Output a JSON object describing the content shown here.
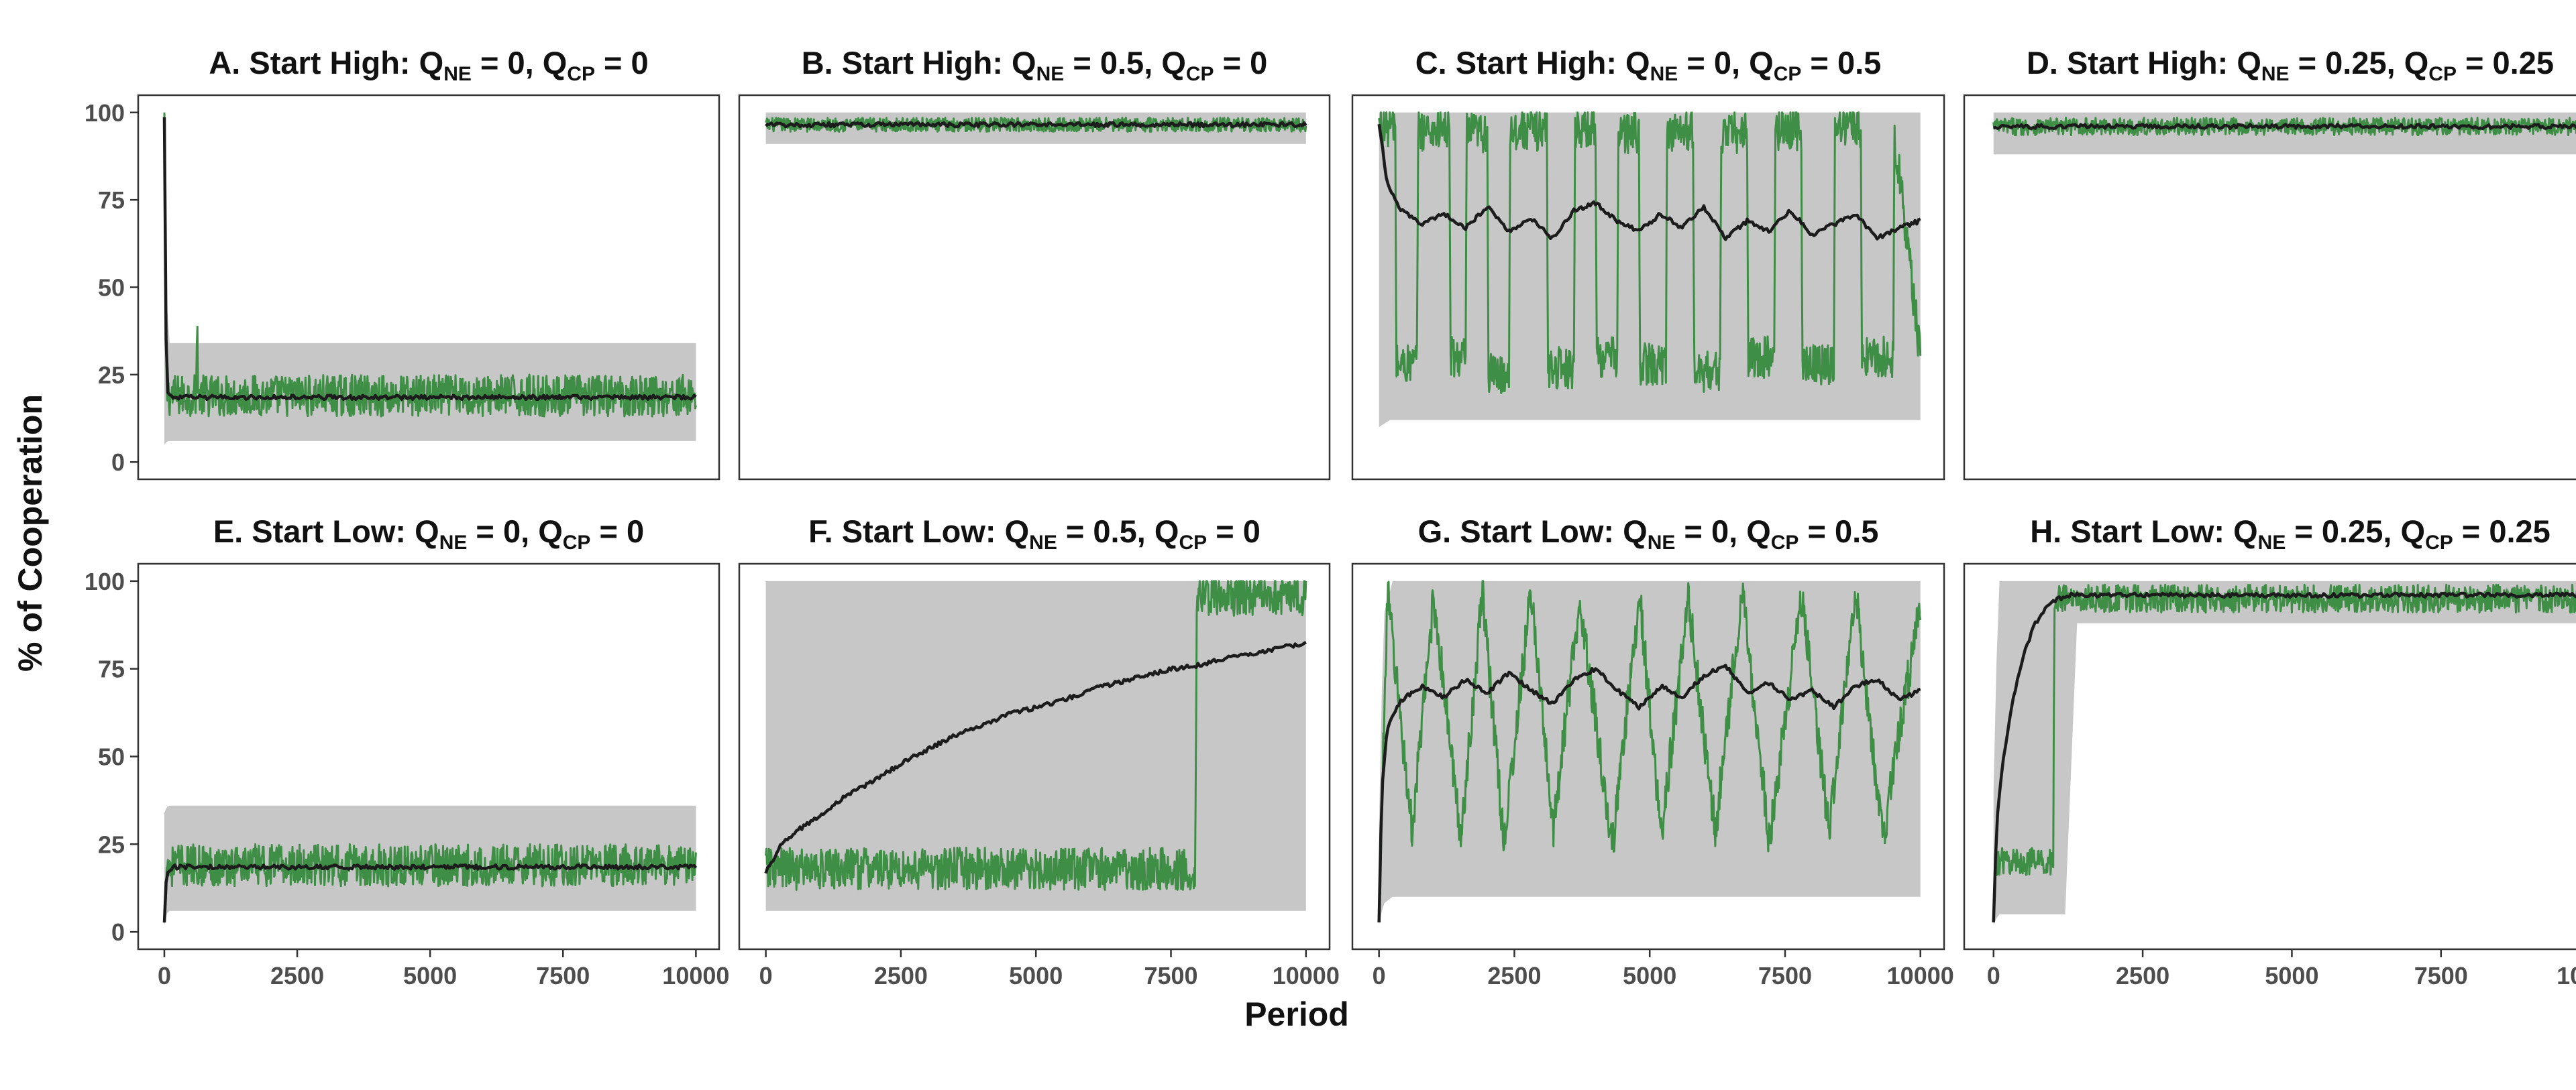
{
  "chart_data": {
    "type": "line",
    "xlabel": "Period",
    "ylabel": "% of Cooperation",
    "xlim": [
      0,
      10000
    ],
    "ylim": [
      0,
      100
    ],
    "x_ticks": [
      0,
      2500,
      5000,
      7500,
      10000
    ],
    "y_ticks": [
      0,
      25,
      50,
      75,
      100
    ],
    "grid": false,
    "colors": {
      "band": "#bdbdbd",
      "sample_run": "#3e8e46",
      "mean": "#1c1c1c",
      "frame": "#333333"
    },
    "panels": [
      {
        "id": "A",
        "title": {
          "main": "A. Start High:",
          "q1": "Q",
          "q1_sub": "NE",
          "q1_val": " = 0,",
          "q2": "Q",
          "q2_sub": "CP",
          "q2_val": " = 0"
        },
        "mean": {
          "x": [
            0,
            40,
            80,
            200,
            1000,
            2500,
            5000,
            7500,
            10000
          ],
          "y": [
            99,
            22,
            19,
            18.5,
            18.5,
            18.5,
            18.5,
            18.5,
            18.5
          ]
        },
        "band": {
          "x": [
            0,
            60,
            200,
            10000
          ],
          "low": [
            5,
            6,
            6,
            6
          ],
          "high": [
            100,
            34,
            34,
            34
          ]
        },
        "sample": {
          "x": [
            0,
            40,
            80,
            600,
            620,
            640,
            10000
          ],
          "y": [
            99,
            20,
            19,
            19,
            40,
            19,
            19
          ],
          "jitter": 6
        }
      },
      {
        "id": "B",
        "title": {
          "main": "B. Start High:",
          "q1": "Q",
          "q1_sub": "NE",
          "q1_val": " = 0.5,",
          "q2": "Q",
          "q2_sub": "CP",
          "q2_val": " = 0"
        },
        "mean": {
          "x": [
            0,
            10000
          ],
          "y": [
            96.5,
            96.5
          ]
        },
        "band": {
          "x": [
            0,
            10000
          ],
          "low": [
            91,
            91
          ],
          "high": [
            100,
            100
          ]
        },
        "sample": {
          "x": [
            0,
            10000
          ],
          "y": [
            96.5,
            96.5
          ],
          "jitter": 2
        }
      },
      {
        "id": "C",
        "title": {
          "main": "C. Start High:",
          "q1": "Q",
          "q1_sub": "NE",
          "q1_val": " = 0,",
          "q2": "Q",
          "q2_sub": "CP",
          "q2_val": " = 0.5"
        },
        "mean": {
          "x": [
            0,
            150,
            400,
            800,
            1200,
            1600,
            2000,
            2400,
            2800,
            3200,
            3600,
            4000,
            4400,
            4800,
            5200,
            5600,
            6000,
            6400,
            6800,
            7200,
            7600,
            8000,
            8400,
            8800,
            9200,
            9600,
            10000
          ],
          "y": [
            97,
            80,
            72,
            68,
            71,
            67,
            73,
            66,
            70,
            64,
            72,
            74,
            69,
            66,
            71,
            67,
            73,
            64,
            69,
            66,
            72,
            65,
            68,
            71,
            64,
            67,
            69
          ]
        },
        "band": {
          "x": [
            0,
            200,
            10000
          ],
          "low": [
            10,
            12,
            12
          ],
          "high": [
            100,
            100,
            100
          ]
        },
        "sample": {
          "x": [
            0,
            300,
            320,
            700,
            720,
            1300,
            1320,
            1600,
            1620,
            2000,
            2020,
            2400,
            2420,
            3100,
            3120,
            3600,
            3620,
            4000,
            4020,
            4400,
            4420,
            4800,
            4820,
            5300,
            5320,
            5800,
            5820,
            6300,
            6320,
            6800,
            6820,
            7300,
            7320,
            7800,
            7820,
            8400,
            8420,
            8900,
            8920,
            9500,
            9520,
            10000
          ],
          "y": [
            96,
            96,
            28,
            28,
            95,
            95,
            30,
            30,
            94,
            94,
            25,
            25,
            95,
            95,
            27,
            27,
            96,
            96,
            30,
            30,
            94,
            94,
            28,
            28,
            95,
            95,
            26,
            26,
            94,
            94,
            30,
            30,
            95,
            95,
            28,
            28,
            96,
            96,
            30,
            30,
            94,
            30
          ],
          "jitter": 6
        }
      },
      {
        "id": "D",
        "title": {
          "main": "D. Start High:",
          "q1": "Q",
          "q1_sub": "NE",
          "q1_val": " = 0.25,",
          "q2": "Q",
          "q2_sub": "CP",
          "q2_val": " = 0.25"
        },
        "mean": {
          "x": [
            0,
            10000
          ],
          "y": [
            96,
            96
          ]
        },
        "band": {
          "x": [
            0,
            10000
          ],
          "low": [
            88,
            88
          ],
          "high": [
            100,
            100
          ]
        },
        "sample": {
          "x": [
            0,
            10000
          ],
          "y": [
            96,
            96
          ],
          "jitter": 2.5
        }
      },
      {
        "id": "E",
        "title": {
          "main": "E. Start Low:",
          "q1": "Q",
          "q1_sub": "NE",
          "q1_val": " = 0,",
          "q2": "Q",
          "q2_sub": "CP",
          "q2_val": " = 0"
        },
        "mean": {
          "x": [
            0,
            40,
            200,
            10000
          ],
          "y": [
            3,
            17,
            18.5,
            18.5
          ]
        },
        "band": {
          "x": [
            0,
            60,
            10000
          ],
          "low": [
            2,
            6,
            6
          ],
          "high": [
            34,
            36,
            36
          ]
        },
        "sample": {
          "x": [
            0,
            40,
            10000
          ],
          "y": [
            3,
            19,
            19
          ],
          "jitter": 6
        }
      },
      {
        "id": "F",
        "title": {
          "main": "F. Start Low:",
          "q1": "Q",
          "q1_sub": "NE",
          "q1_val": " = 0.5,",
          "q2": "Q",
          "q2_sub": "CP",
          "q2_val": " = 0"
        },
        "mean": {
          "x": [
            0,
            250,
            500,
            1000,
            1500,
            2000,
            2500,
            3000,
            3500,
            4000,
            4500,
            5000,
            5500,
            6000,
            6500,
            7000,
            7500,
            8000,
            8500,
            9000,
            9500,
            10000
          ],
          "y": [
            17,
            24,
            28,
            33,
            39,
            43,
            48,
            52,
            56,
            59,
            62,
            64,
            66,
            69,
            71,
            73,
            75,
            76,
            78,
            79,
            81,
            82
          ]
        },
        "band": {
          "x": [
            0,
            10000
          ],
          "low": [
            6,
            6
          ],
          "high": [
            100,
            100
          ]
        },
        "sample": {
          "x": [
            0,
            7950,
            7980,
            10000
          ],
          "y": [
            18,
            18,
            96,
            96
          ],
          "jitter": 6
        }
      },
      {
        "id": "G",
        "title": {
          "main": "G. Start Low:",
          "q1": "Q",
          "q1_sub": "NE",
          "q1_val": " = 0,",
          "q2": "Q",
          "q2_sub": "CP",
          "q2_val": " = 0.5"
        },
        "mean": {
          "x": [
            0,
            50,
            150,
            400,
            800,
            1200,
            1600,
            2000,
            2400,
            2800,
            3200,
            3600,
            4000,
            4400,
            4800,
            5200,
            5600,
            6000,
            6400,
            6800,
            7200,
            7600,
            8000,
            8400,
            8800,
            9200,
            9600,
            10000
          ],
          "y": [
            3,
            40,
            58,
            66,
            70,
            67,
            72,
            68,
            74,
            69,
            65,
            72,
            75,
            69,
            64,
            70,
            67,
            73,
            76,
            68,
            71,
            66,
            69,
            64,
            70,
            72,
            66,
            69
          ]
        },
        "band": {
          "x": [
            0,
            80,
            250,
            10000
          ],
          "low": [
            2,
            8,
            10,
            10
          ],
          "high": [
            30,
            90,
            100,
            100
          ]
        },
        "sample": {
          "x": [
            0,
            150,
            170,
            600,
            620,
            1000,
            1020,
            1500,
            1520,
            1900,
            1920,
            2300,
            2320,
            2800,
            2820,
            3200,
            3220,
            3700,
            3720,
            4300,
            4320,
            4800,
            4820,
            5200,
            5220,
            5700,
            5720,
            6200,
            6220,
            6700,
            6720,
            7200,
            7220,
            7800,
            7820,
            8300,
            8320,
            8800,
            8820,
            9300,
            9320,
            10000
          ],
          "y": [
            3,
            95,
            95,
            30,
            30,
            94,
            94,
            28,
            28,
            95,
            95,
            27,
            27,
            96,
            96,
            30,
            30,
            94,
            94,
            25,
            25,
            95,
            95,
            28,
            28,
            94,
            94,
            30,
            30,
            96,
            96,
            27,
            27,
            95,
            95,
            30,
            30,
            94,
            94,
            28,
            28,
            94
          ],
          "jitter": 6
        }
      },
      {
        "id": "H",
        "title": {
          "main": "H. Start Low:",
          "q1": "Q",
          "q1_sub": "NE",
          "q1_val": " = 0.25,",
          "q2": "Q",
          "q2_sub": "CP",
          "q2_val": " = 0.25"
        },
        "mean": {
          "x": [
            0,
            50,
            150,
            300,
            500,
            700,
            900,
            1100,
            1300,
            1500,
            10000
          ],
          "y": [
            3,
            30,
            48,
            64,
            79,
            88,
            93,
            95,
            96,
            96,
            96
          ]
        },
        "band": {
          "x": [
            0,
            80,
            1200,
            1400,
            10000
          ],
          "low": [
            2,
            5,
            5,
            88,
            88
          ],
          "high": [
            40,
            100,
            100,
            100,
            100
          ]
        },
        "sample": {
          "x": [
            0,
            50,
            1000,
            1020,
            10000
          ],
          "y": [
            3,
            20,
            20,
            95,
            95
          ],
          "jitter": 4
        }
      }
    ]
  }
}
